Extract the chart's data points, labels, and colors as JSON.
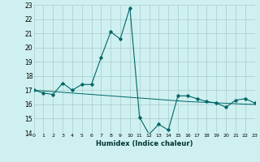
{
  "line1_x": [
    0,
    1,
    2,
    3,
    4,
    5,
    6,
    7,
    8,
    9,
    10,
    11,
    12,
    13,
    14,
    15,
    16,
    17,
    18,
    19,
    20,
    21,
    22,
    23
  ],
  "line1_y": [
    17.0,
    16.8,
    16.7,
    17.5,
    17.0,
    17.4,
    17.4,
    19.3,
    21.1,
    20.6,
    22.8,
    15.1,
    13.9,
    14.6,
    14.2,
    16.6,
    16.6,
    16.4,
    16.2,
    16.1,
    15.8,
    16.3,
    16.4,
    16.1
  ],
  "line2_x": [
    0,
    1,
    2,
    3,
    4,
    5,
    6,
    7,
    8,
    9,
    10,
    11,
    12,
    13,
    14,
    15,
    16,
    17,
    18,
    19,
    20,
    21,
    22,
    23
  ],
  "line2_y": [
    17.0,
    16.95,
    16.9,
    16.85,
    16.8,
    16.75,
    16.7,
    16.65,
    16.6,
    16.55,
    16.5,
    16.45,
    16.4,
    16.35,
    16.3,
    16.25,
    16.2,
    16.17,
    16.14,
    16.11,
    16.08,
    16.05,
    16.02,
    16.0
  ],
  "line_color": "#006666",
  "bg_color": "#cff0f0",
  "grid_color": "#a8cccc",
  "xlabel": "Humidex (Indice chaleur)",
  "ylim": [
    14,
    23
  ],
  "xlim": [
    0,
    23
  ],
  "yticks": [
    14,
    15,
    16,
    17,
    18,
    19,
    20,
    21,
    22,
    23
  ],
  "xticks": [
    0,
    1,
    2,
    3,
    4,
    5,
    6,
    7,
    8,
    9,
    10,
    11,
    12,
    13,
    14,
    15,
    16,
    17,
    18,
    19,
    20,
    21,
    22,
    23
  ]
}
